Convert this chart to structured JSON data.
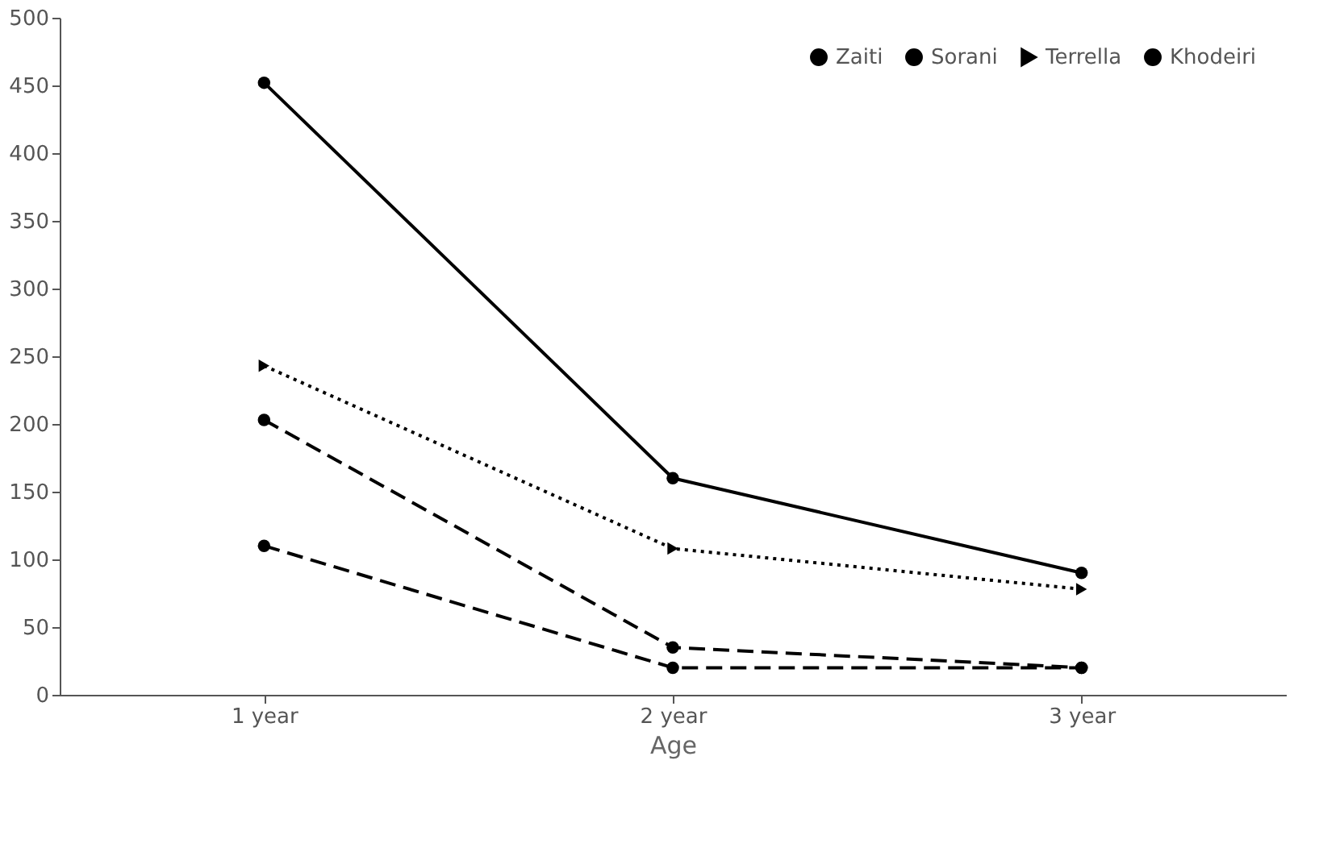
{
  "chart_data": {
    "type": "line",
    "xlabel": "Age",
    "categories": [
      "1 year",
      "2 year",
      "3 year"
    ],
    "series": [
      {
        "name": "Zaiti",
        "color": "#000000",
        "values": [
          452,
          160,
          90
        ],
        "marker": "circle",
        "line_style": "solid"
      },
      {
        "name": "Sorani",
        "color": "#000000",
        "values": [
          203,
          35,
          20
        ],
        "marker": "circle",
        "line_style": "dashed"
      },
      {
        "name": "Terrella",
        "color": "#000000",
        "values": [
          243,
          108,
          78
        ],
        "marker": "triangle",
        "line_style": "dotted"
      },
      {
        "name": "Khodeiri",
        "color": "#000000",
        "values": [
          110,
          20,
          20
        ],
        "marker": "circle",
        "line_style": "dashed"
      }
    ],
    "ylim": [
      0,
      500
    ],
    "yticks": [
      0,
      50,
      100,
      150,
      200,
      250,
      300,
      350,
      400,
      450,
      500
    ],
    "grid": false,
    "legend": "top right"
  }
}
